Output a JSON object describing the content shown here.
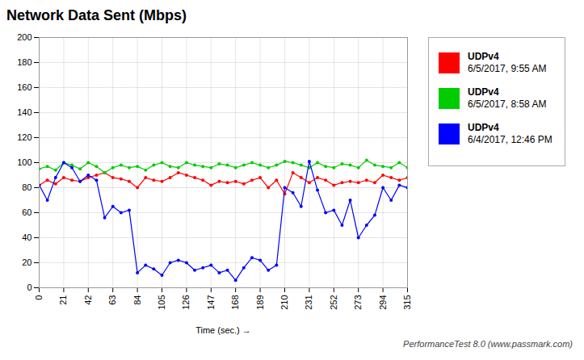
{
  "chart_data": {
    "type": "line",
    "title": "Network Data Sent (Mbps)",
    "xlabel": "Time (sec.)",
    "x": [
      0,
      7,
      14,
      21,
      28,
      35,
      42,
      49,
      56,
      63,
      70,
      77,
      84,
      91,
      98,
      105,
      112,
      119,
      126,
      133,
      140,
      147,
      154,
      161,
      168,
      175,
      182,
      189,
      196,
      203,
      210,
      217,
      224,
      231,
      238,
      245,
      252,
      259,
      266,
      273,
      280,
      287,
      294,
      301,
      308,
      315
    ],
    "series": [
      {
        "name": "UDPv4\n6/5/2017, 9:55 AM",
        "color": "#ff0000",
        "values": [
          82,
          86,
          83,
          88,
          86,
          85,
          88,
          90,
          92,
          88,
          87,
          85,
          80,
          88,
          86,
          85,
          88,
          92,
          90,
          88,
          86,
          82,
          85,
          84,
          85,
          83,
          86,
          88,
          80,
          86,
          75,
          92,
          88,
          84,
          88,
          86,
          82,
          84,
          85,
          84,
          86,
          84,
          90,
          88,
          86,
          88
        ]
      },
      {
        "name": "UDPv4\n6/5/2017, 8:58 AM",
        "color": "#00cc00",
        "values": [
          95,
          97,
          94,
          100,
          98,
          95,
          100,
          97,
          92,
          96,
          98,
          96,
          97,
          94,
          98,
          100,
          97,
          96,
          100,
          98,
          97,
          96,
          99,
          98,
          96,
          98,
          100,
          98,
          96,
          98,
          101,
          100,
          98,
          96,
          100,
          97,
          96,
          99,
          98,
          96,
          102,
          98,
          97,
          96,
          100,
          96
        ]
      },
      {
        "name": "UDPv4\n6/4/2017, 12:46 PM",
        "color": "#0000ff",
        "values": [
          82,
          70,
          88,
          100,
          96,
          85,
          90,
          86,
          56,
          65,
          60,
          62,
          12,
          18,
          15,
          10,
          20,
          22,
          20,
          14,
          16,
          18,
          12,
          14,
          6,
          16,
          24,
          22,
          14,
          18,
          80,
          76,
          65,
          101,
          78,
          60,
          62,
          50,
          70,
          40,
          50,
          58,
          80,
          70,
          82,
          80
        ]
      }
    ],
    "xlim": [
      0,
      315
    ],
    "ylim": [
      0,
      200
    ],
    "xticks": [
      0,
      21,
      42,
      63,
      84,
      105,
      126,
      147,
      168,
      189,
      210,
      231,
      252,
      273,
      294,
      315
    ],
    "yticks": [
      0,
      20,
      40,
      60,
      80,
      100,
      120,
      140,
      160,
      180,
      200
    ],
    "grid": true,
    "legend": "right",
    "marker": "circle",
    "annotations": [
      "PerformanceTest 8.0 (www.passmark.com)"
    ]
  }
}
